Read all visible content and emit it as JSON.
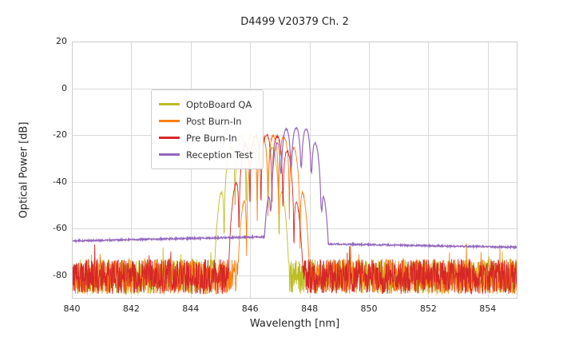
{
  "chart_data": {
    "type": "line",
    "title": "D4499 V20379 Ch. 2",
    "xlabel": "Wavelength [nm]",
    "ylabel": "Optical Power [dB]",
    "xlim": [
      840,
      855
    ],
    "ylim": [
      -90,
      20
    ],
    "xticks": [
      840,
      842,
      844,
      846,
      848,
      850,
      852,
      854
    ],
    "yticks": [
      20,
      0,
      -20,
      -40,
      -60,
      -80
    ],
    "grid": true,
    "grid_color": "#dadada",
    "spine_color": "#cccccc",
    "background": "#ffffff",
    "legend_position": "upper-left",
    "sample_step": 0.01,
    "series": [
      {
        "name": "OptoBoard QA",
        "color": "#bcbd22",
        "kind": "noisy_laser_spectrum",
        "seed": 11,
        "noise_floor": {
          "mean_db": -80.5,
          "spread_db": 15,
          "spike_prob": 0.012,
          "spike_db": 6
        },
        "signal": {
          "range": [
            843.8,
            848.05
          ],
          "center_nm": 846.05,
          "peak_db": -20,
          "quartic_k": 20,
          "mode_spacing_nm": 0.37,
          "mode_phase_nm": 846.05,
          "notch_floor": 0.018,
          "jitter_db": 1.2
        }
      },
      {
        "name": "Post Burn-In",
        "color": "#ff7f0e",
        "kind": "noisy_laser_spectrum",
        "seed": 22,
        "noise_floor": {
          "mean_db": -80.5,
          "spread_db": 15,
          "spike_prob": 0.012,
          "spike_db": 6
        },
        "signal": {
          "range": [
            844.5,
            848.3
          ],
          "center_nm": 846.8,
          "peak_db": -20.5,
          "quartic_k": 24,
          "mode_spacing_nm": 0.36,
          "mode_phase_nm": 846.78,
          "notch_floor": 0.02,
          "jitter_db": 1.2
        }
      },
      {
        "name": "Pre Burn-In",
        "color": "#d62728",
        "kind": "noisy_laser_spectrum",
        "seed": 33,
        "noise_floor": {
          "mean_db": -80.5,
          "spread_db": 15,
          "spike_prob": 0.012,
          "spike_db": 6
        },
        "signal": {
          "range": [
            844.3,
            848.2
          ],
          "center_nm": 846.5,
          "peak_db": -20,
          "quartic_k": 20,
          "mode_spacing_nm": 0.37,
          "mode_phase_nm": 846.55,
          "notch_floor": 0.02,
          "jitter_db": 1.2
        }
      },
      {
        "name": "Reception Test",
        "color": "#9467bd",
        "kind": "smooth_receiver_spectrum",
        "seed": 44,
        "noise_amp_db": 0.35,
        "baseline": {
          "left_db": -65.3,
          "mid_x_nm": 846.3,
          "mid_db": -63.6,
          "drop_x_nm": 848.62,
          "right_db": -66.6,
          "end_db": -68.0
        },
        "signal": {
          "range": [
            845.9,
            848.62
          ],
          "center_nm": 847.55,
          "peak_db": -17,
          "quartic_k": 35,
          "mode_spacing_nm": 0.34,
          "mode_phase_nm": 847.55,
          "notch_floor": 0.15,
          "jitter_db": 0.6
        }
      }
    ]
  }
}
